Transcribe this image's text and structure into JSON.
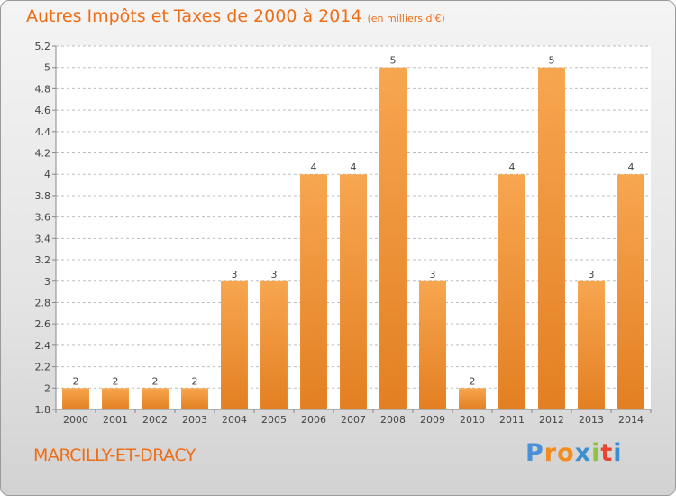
{
  "title": "Autres Impôts et Taxes de 2000 à 2014",
  "unit": "(en milliers d'€)",
  "commune": "MARCILLY-ET-DRACY",
  "brand": {
    "letters": [
      "P",
      "r",
      "o",
      "x",
      "i",
      "t",
      "i"
    ],
    "colors": [
      "#4a90d9",
      "#f28c1e",
      "#f28c1e",
      "#3a8fd0",
      "#8cc63f",
      "#e8442e",
      "#3a8fd0"
    ]
  },
  "colors": {
    "title": "#ee6e18",
    "bar_light": "#f7a650",
    "bar_dark": "#e37f22",
    "grid": "#bdbdbd"
  },
  "chart_data": {
    "type": "bar",
    "categories": [
      "2000",
      "2001",
      "2002",
      "2003",
      "2004",
      "2005",
      "2006",
      "2007",
      "2008",
      "2009",
      "2010",
      "2011",
      "2012",
      "2013",
      "2014"
    ],
    "values": [
      2,
      2,
      2,
      2,
      3,
      3,
      4,
      4,
      5,
      3,
      2,
      4,
      5,
      3,
      4
    ],
    "value_labels": [
      "2",
      "2",
      "2",
      "2",
      "3",
      "3",
      "4",
      "4",
      "5",
      "3",
      "2",
      "4",
      "5",
      "3",
      "4"
    ],
    "yticks": [
      "1.8",
      "2",
      "2.2",
      "2.4",
      "2.6",
      "2.8",
      "3",
      "3.2",
      "3.4",
      "3.6",
      "3.8",
      "4",
      "4.2",
      "4.4",
      "4.6",
      "4.8",
      "5",
      "5.2"
    ],
    "ytick_labels": [
      "1.8",
      "2",
      "2.2",
      "2.4",
      "2.6",
      "2.8",
      "3",
      "3.2",
      "3.4",
      "3.6",
      "3.8",
      "4",
      "4.2",
      "4.4",
      "4.6",
      "4.8",
      "5",
      "5.2"
    ],
    "ylim": [
      1.8,
      5.2
    ],
    "grid": true,
    "legend": "none"
  }
}
